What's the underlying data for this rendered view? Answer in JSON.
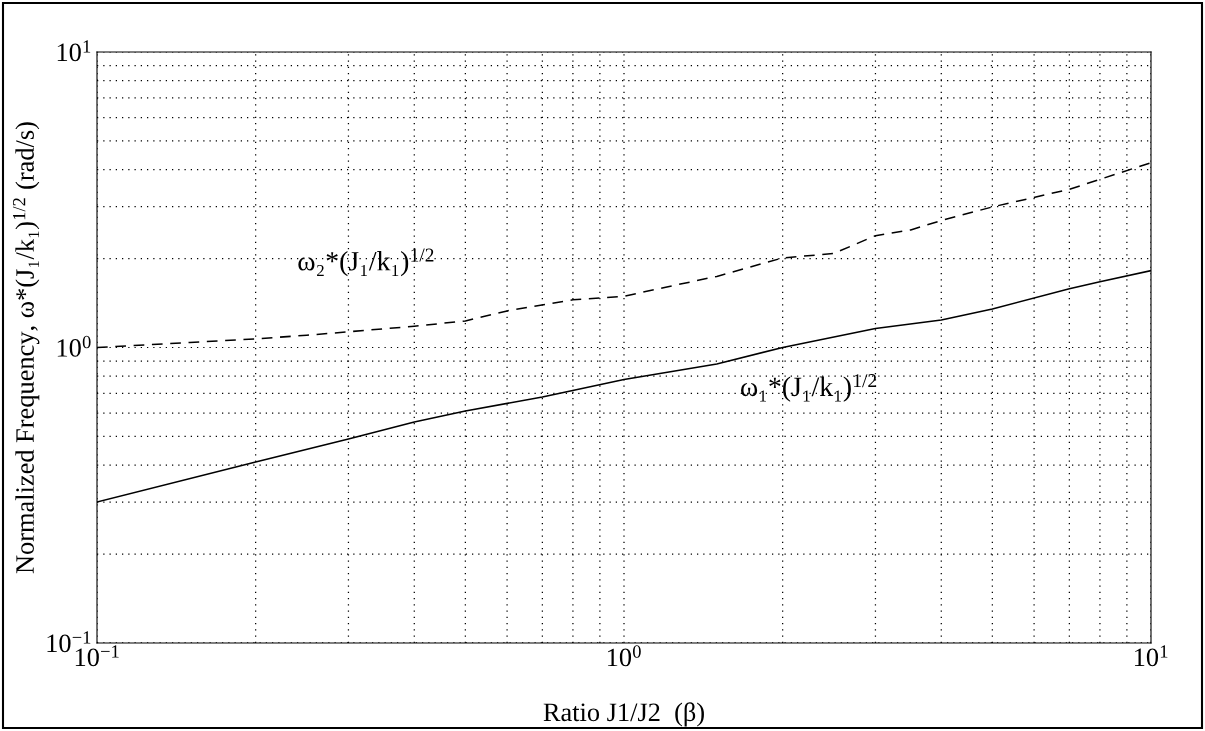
{
  "chart_data": {
    "type": "line",
    "xlabel": "Ratio J1/J2  (β)",
    "ylabel": "Normalized Frequency, ω*(J₁/k₁)$^{1/2}$ (rad/s)",
    "log": "xy",
    "grid": true,
    "xlim": [
      0.1,
      10
    ],
    "ylim": [
      0.1,
      10
    ],
    "xticks": [
      {
        "value": 0.1,
        "label": "10$^{−1}$"
      },
      {
        "value": 1,
        "label": "10$^{0}$"
      },
      {
        "value": 10,
        "label": "10$^{1}$"
      }
    ],
    "yticks": [
      {
        "value": 0.1,
        "label": "10$^{−1}$"
      },
      {
        "value": 1,
        "label": "10$^{0}$"
      },
      {
        "value": 10,
        "label": "10$^{1}$"
      }
    ],
    "series": [
      {
        "name": "ω₁*(J₁/k₁)$^{1/2}$",
        "color": "#000000",
        "line_style": "solid",
        "x": [
          0.1,
          0.2,
          0.3,
          0.4,
          0.5,
          0.7,
          1,
          1.5,
          2,
          3,
          4,
          5,
          7,
          8,
          10
        ],
        "values": [
          0.3,
          0.41,
          0.49,
          0.56,
          0.61,
          0.68,
          0.78,
          0.88,
          1.0,
          1.16,
          1.24,
          1.35,
          1.58,
          1.67,
          1.82
        ]
      },
      {
        "name": "ω₂*(J₁/k₁)$^{1/2}$",
        "color": "#000000",
        "line_style": "dashed",
        "x": [
          0.1,
          0.15,
          0.2,
          0.25,
          0.4,
          0.5,
          0.6,
          0.8,
          1,
          1.2,
          1.5,
          2,
          2.5,
          3,
          3.5,
          4,
          5,
          7,
          10
        ],
        "values": [
          1.0,
          1.04,
          1.07,
          1.1,
          1.18,
          1.23,
          1.33,
          1.45,
          1.49,
          1.6,
          1.74,
          2.01,
          2.08,
          2.39,
          2.5,
          2.69,
          2.99,
          3.43,
          4.22
        ]
      }
    ]
  }
}
